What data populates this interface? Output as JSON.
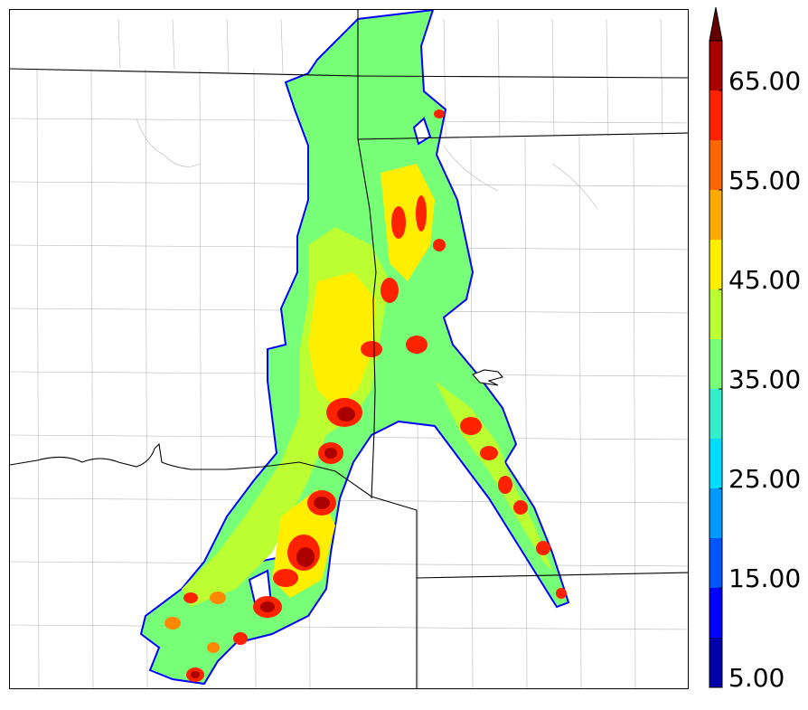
{
  "colorbar": {
    "extend": "max",
    "labels": [
      "5.00",
      "15.00",
      "25.00",
      "35.00",
      "45.00",
      "55.00",
      "65.00"
    ],
    "levels": [
      5,
      10,
      15,
      20,
      25,
      30,
      35,
      40,
      45,
      50,
      55,
      60,
      65,
      70
    ],
    "colors": [
      "#0000aa",
      "#0000ff",
      "#0055ff",
      "#0099ff",
      "#00ddff",
      "#33eecc",
      "#77ff77",
      "#bbff33",
      "#ffee00",
      "#ffaa00",
      "#ff6600",
      "#ff2200",
      "#aa0000",
      "#660000"
    ]
  },
  "map": {
    "fill_colors": {
      "base": "#77ff77",
      "mid": "#bbff33",
      "high": "#ffee00",
      "orange": "#ff8800",
      "red": "#ff2200",
      "darkred": "#aa0000",
      "edge": "#0000ff"
    },
    "boundary_color": "#000000",
    "county_color": "#b0b0b0"
  }
}
